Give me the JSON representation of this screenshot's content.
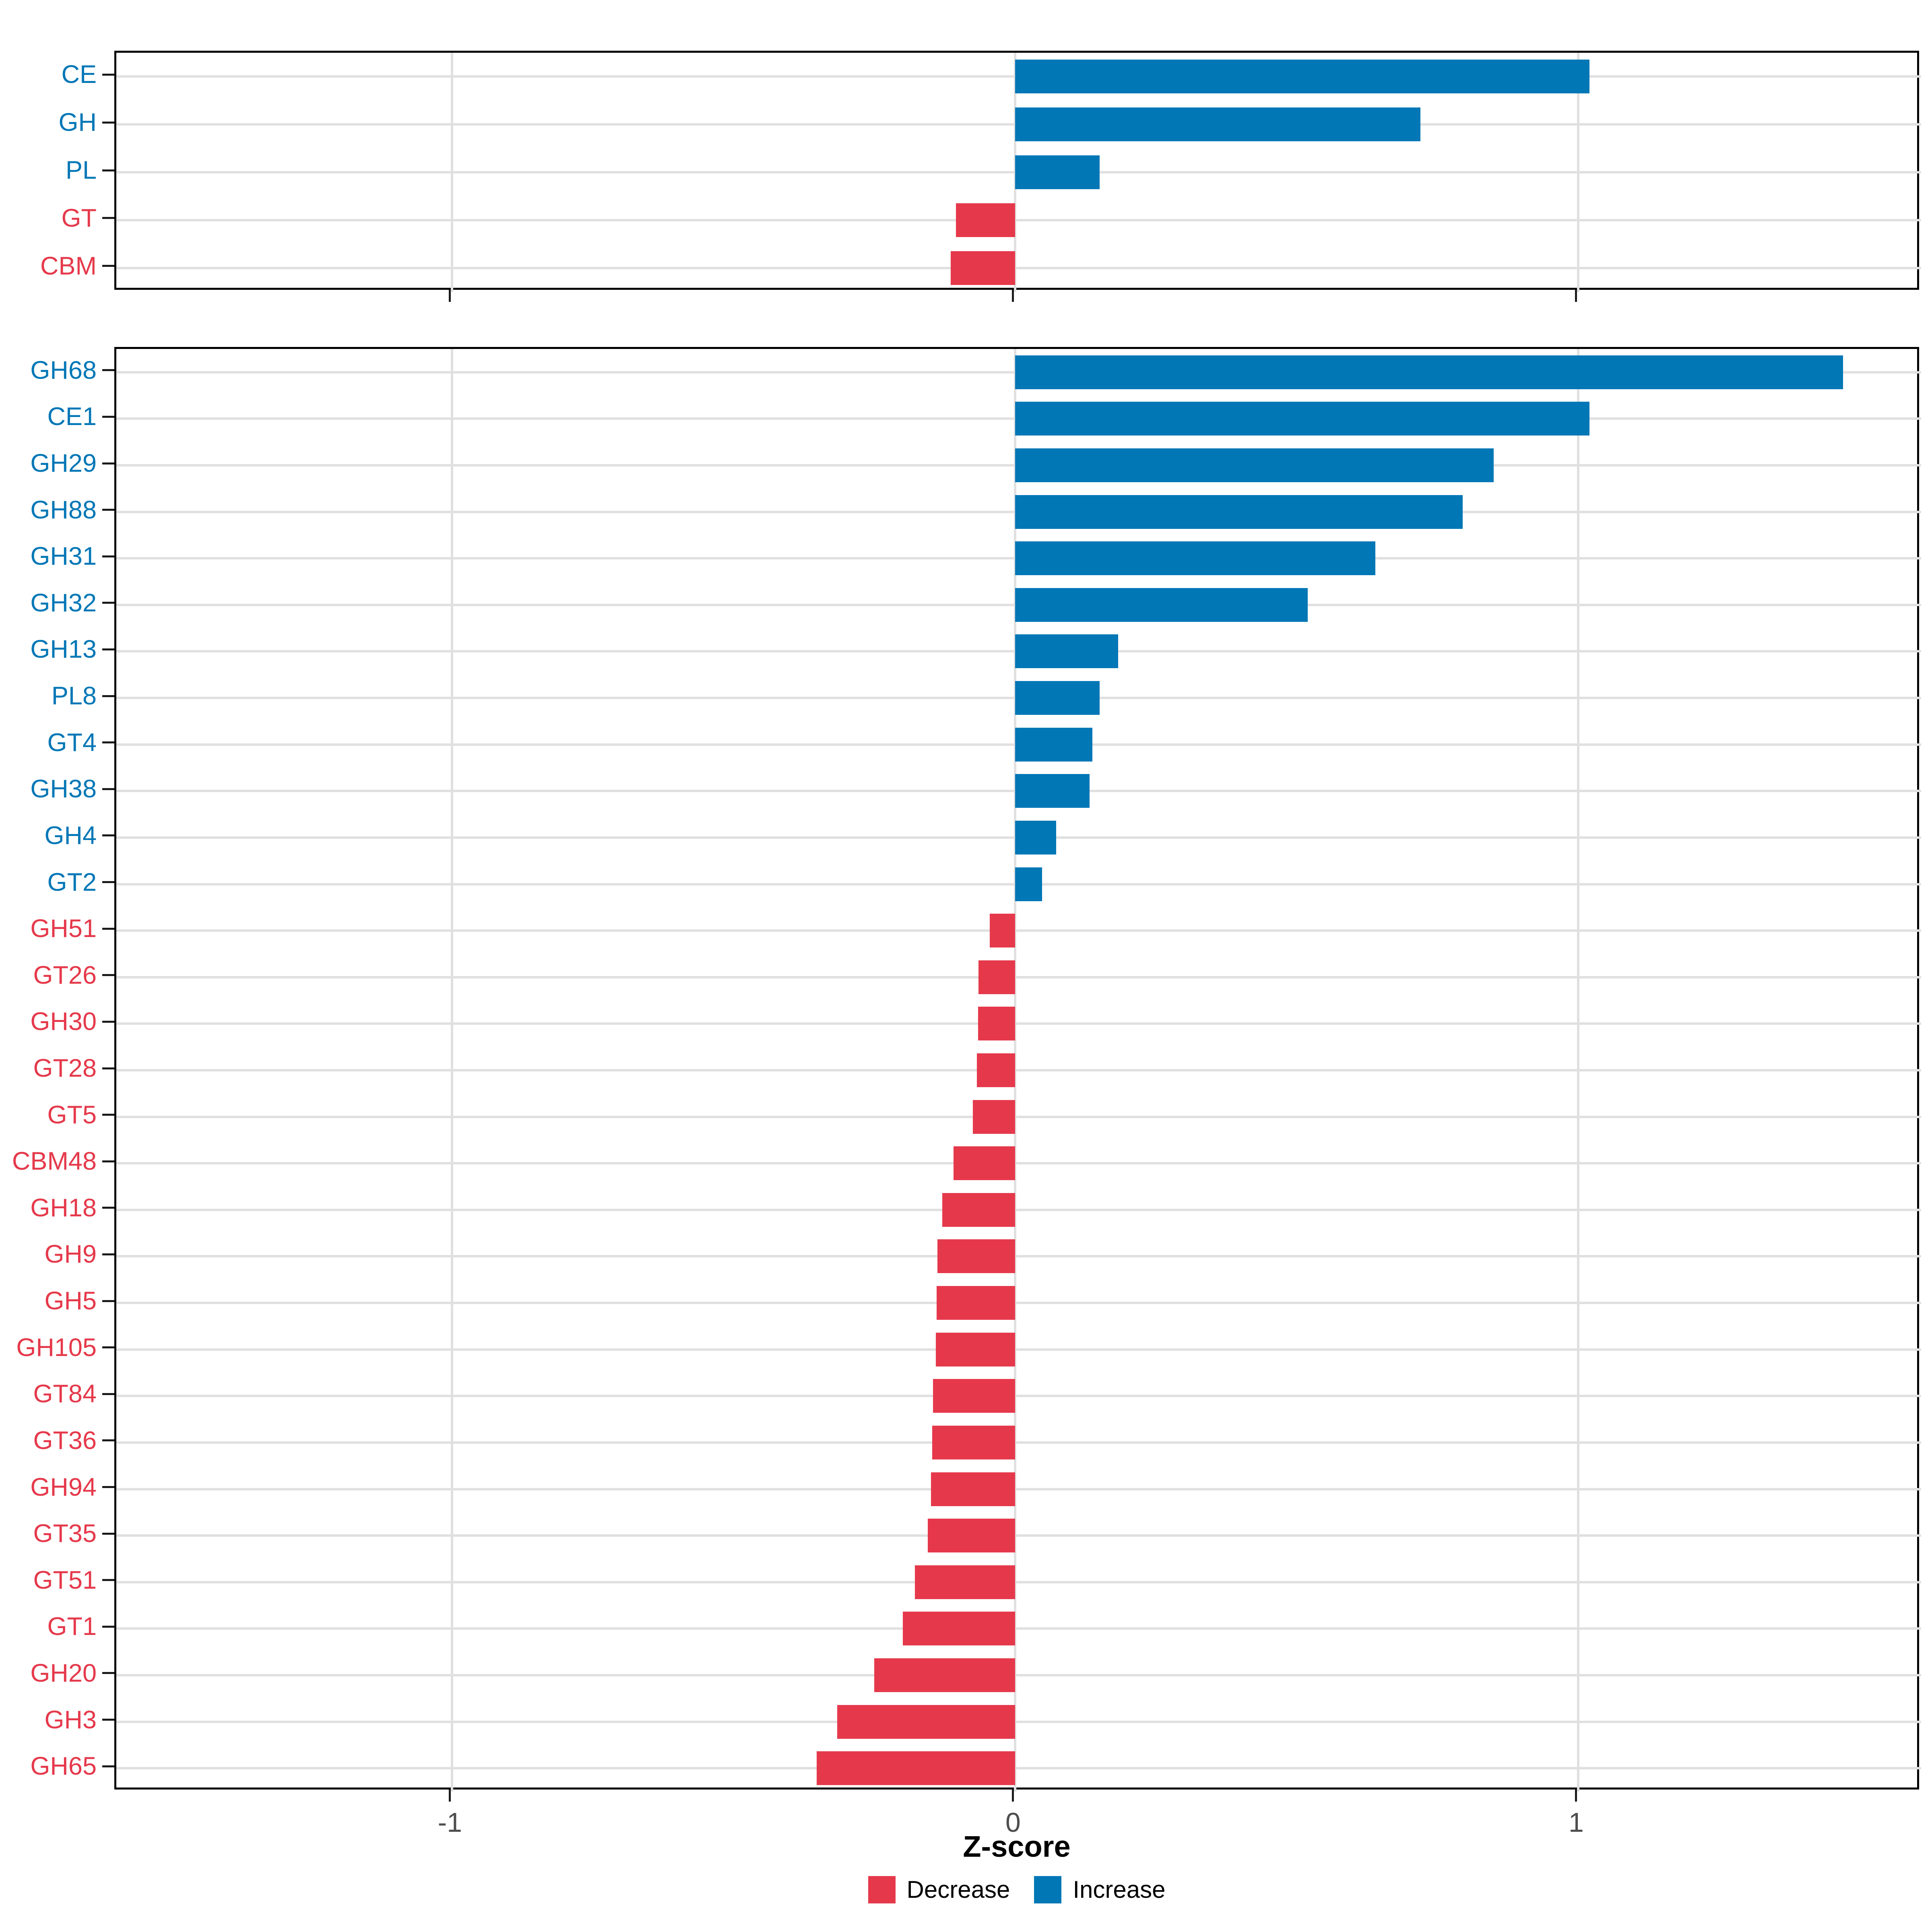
{
  "figure": {
    "background": "#ffffff",
    "panel_border_color": "#000000",
    "grid_color": "#e0e0e0",
    "tick_color": "#1a1a1a",
    "axis_text_color": "#4d4d4d",
    "increase_color": "#0277b6",
    "decrease_color": "#e5394b"
  },
  "xaxis": {
    "label": "Z-score",
    "tick_labels": [
      "-1",
      "0",
      "1"
    ],
    "tick_values": [
      -1,
      0,
      1
    ]
  },
  "legend": {
    "items": [
      {
        "label": "Decrease",
        "color": "#e5394b"
      },
      {
        "label": "Increase",
        "color": "#0277b6"
      }
    ]
  },
  "chart_data": [
    {
      "type": "bar",
      "orientation": "horizontal",
      "panel": "top-class-level",
      "xlabel": "Z-score",
      "ylabel": "",
      "xlim": [
        -1.596,
        1.609
      ],
      "x_ticks": [
        -1,
        0,
        1
      ],
      "grid": true,
      "legend_position": "bottom",
      "categories": [
        "CE",
        "GH",
        "PL",
        "GT",
        "CBM"
      ],
      "values": [
        1.02,
        0.72,
        0.15,
        -0.105,
        -0.114
      ],
      "bar_colors_rule": "value>=0 Increase blue, value<0 Decrease red"
    },
    {
      "type": "bar",
      "orientation": "horizontal",
      "panel": "bottom-family-level",
      "xlabel": "Z-score",
      "ylabel": "",
      "xlim": [
        -1.596,
        1.609
      ],
      "x_ticks": [
        -1,
        0,
        1
      ],
      "grid": true,
      "legend_position": "bottom",
      "categories": [
        "GH68",
        "CE1",
        "GH29",
        "GH88",
        "GH31",
        "GH32",
        "GH13",
        "PL8",
        "GT4",
        "GH38",
        "GH4",
        "GT2",
        "GH51",
        "GT26",
        "GH30",
        "GT28",
        "GT5",
        "CBM48",
        "GH18",
        "GH9",
        "GH5",
        "GH105",
        "GT84",
        "GT36",
        "GH94",
        "GT35",
        "GT51",
        "GT1",
        "GH20",
        "GH3",
        "GH65"
      ],
      "values": [
        1.47,
        1.02,
        0.85,
        0.795,
        0.64,
        0.52,
        0.183,
        0.15,
        0.137,
        0.132,
        0.073,
        0.048,
        -0.045,
        -0.065,
        -0.066,
        -0.068,
        -0.075,
        -0.109,
        -0.129,
        -0.138,
        -0.139,
        -0.141,
        -0.146,
        -0.147,
        -0.149,
        -0.155,
        -0.178,
        -0.199,
        -0.25,
        -0.316,
        -0.352
      ],
      "bar_colors_rule": "value>=0 Increase blue, value<0 Decrease red"
    }
  ]
}
